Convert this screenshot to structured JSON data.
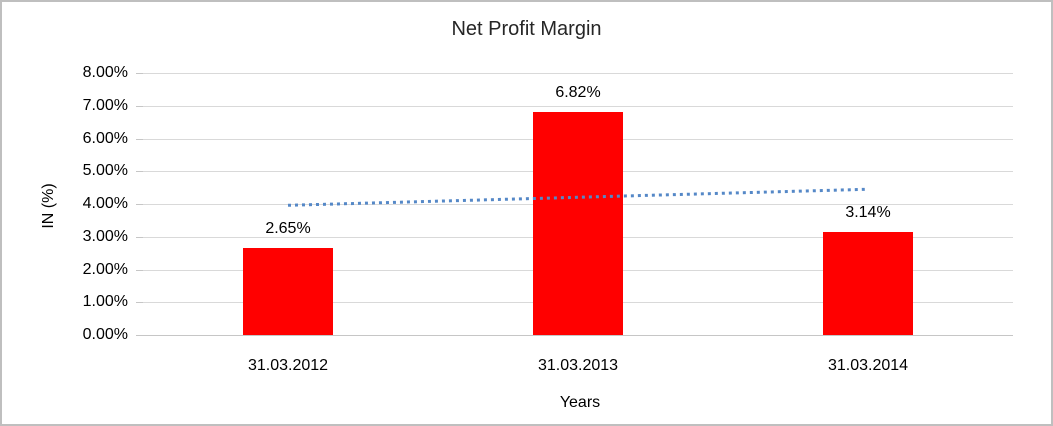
{
  "chart_data": {
    "type": "bar",
    "title": "Net Profit Margin",
    "xlabel": "Years",
    "ylabel": "IN (%)",
    "categories": [
      "31.03.2012",
      "31.03.2013",
      "31.03.2014"
    ],
    "series": [
      {
        "name": "Net Profit Margin",
        "values": [
          2.65,
          6.82,
          3.14
        ]
      }
    ],
    "value_labels": [
      "2.65%",
      "6.82%",
      "3.14%"
    ],
    "y_ticks": [
      "0.00%",
      "1.00%",
      "2.00%",
      "3.00%",
      "4.00%",
      "5.00%",
      "6.00%",
      "7.00%",
      "8.00%"
    ],
    "ylim": [
      0,
      8
    ],
    "grid": true,
    "legend": "none",
    "trendline": {
      "type": "linear",
      "style": "dotted",
      "y_start": 3.96,
      "y_end": 4.45
    },
    "colors": {
      "bar": "#ff0000",
      "trendline": "#5588c7",
      "gridline": "#d9d9d9",
      "axisline": "#c6c6c6",
      "frame": "#bfbfbf",
      "text": "#000000"
    }
  }
}
